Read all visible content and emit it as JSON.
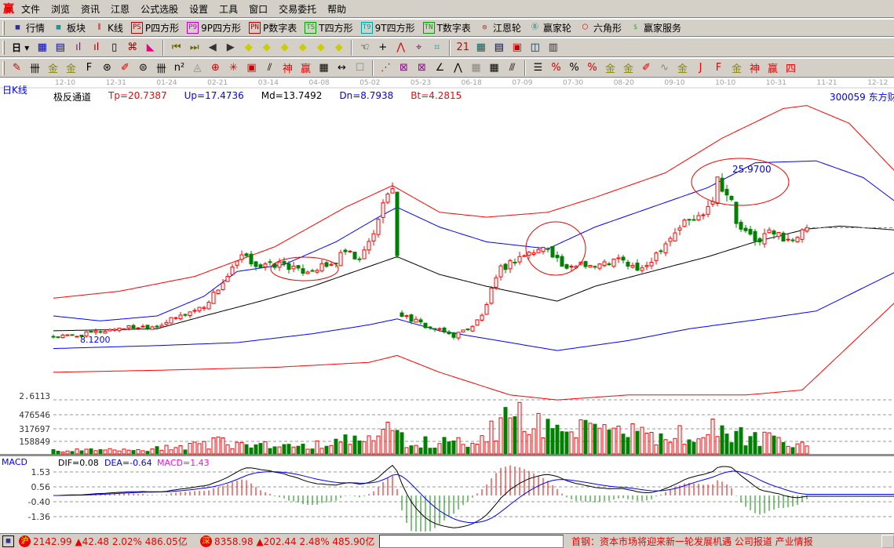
{
  "menu": {
    "logo": "赢",
    "items": [
      "文件",
      "浏览",
      "资讯",
      "江恩",
      "公式选股",
      "设置",
      "工具",
      "窗口",
      "交易委托",
      "帮助"
    ]
  },
  "toolbar1": [
    {
      "icon": "quote-table-icon",
      "glyph": "▦",
      "label": "行情",
      "color": "#000080"
    },
    {
      "icon": "sector-block-icon",
      "glyph": "▩",
      "label": "板块",
      "color": "#008080"
    },
    {
      "icon": "candlestick-icon",
      "glyph": "⫼",
      "label": "K线",
      "color": "#e00"
    },
    {
      "icon": "ps-icon",
      "glyph": "PS",
      "label": "P四方形",
      "color": "#c00000"
    },
    {
      "icon": "p9-icon",
      "glyph": "P9",
      "label": "9P四方形",
      "color": "#c000c0"
    },
    {
      "icon": "pn-icon",
      "glyph": "PN",
      "label": "P数字表",
      "color": "#c00000"
    },
    {
      "icon": "ts-icon",
      "glyph": "TS",
      "label": "T四方形",
      "color": "#00a000"
    },
    {
      "icon": "t9-icon",
      "glyph": "T9",
      "label": "9T四方形",
      "color": "#00a0a0"
    },
    {
      "icon": "tn-icon",
      "glyph": "TN",
      "label": "T数字表",
      "color": "#00a000"
    },
    {
      "icon": "gann-wheel-icon",
      "glyph": "◎",
      "label": "江恩轮",
      "color": "#800000"
    },
    {
      "icon": "big-wheel-icon",
      "glyph": "Ⓑ",
      "label": "赢家轮",
      "color": "#008080"
    },
    {
      "icon": "hexagon-icon",
      "glyph": "⬡",
      "label": "六角形",
      "color": "#c00000"
    },
    {
      "icon": "dollar-icon",
      "glyph": "$",
      "label": "赢家服务",
      "color": "#40b040"
    }
  ],
  "toolbar2": {
    "period": "日",
    "icons": [
      "chart-select-icon",
      "notepad-icon",
      "indicator-3-icon",
      "indicator-9-icon",
      "candle-type-icon",
      "gann-icon",
      "flag-icon",
      "first-icon",
      "last-icon",
      "prev-icon",
      "next-icon",
      "move-left-icon",
      "move-right-icon",
      "expand-h-icon",
      "shrink-h-icon",
      "shrink-v-icon",
      "expand-v-icon",
      "hand-icon",
      "crosshair-icon",
      "line-tool-icon",
      "pattern-icon",
      "pattern2-icon",
      "calendar-icon",
      "calculator-icon",
      "report-icon",
      "save-icon",
      "network-icon",
      "print-icon"
    ],
    "glyphs": [
      "▦",
      "▤",
      "ıl",
      "ıl",
      "▯",
      "⌘",
      "◣",
      "⏮",
      "⏭",
      "◀",
      "▶",
      "◆",
      "◆",
      "◆",
      "◆",
      "◆",
      "◆",
      "☜",
      "+",
      "⋀",
      "⌖",
      "⌗",
      "21",
      "▦",
      "▤",
      "▣",
      "◫",
      "▥"
    ],
    "colors": [
      "#00c",
      "#00c",
      "#909",
      "#900",
      "#000",
      "#900",
      "#e08",
      "#660",
      "#660",
      "#333",
      "#333",
      "#cc0",
      "#cc0",
      "#cc0",
      "#cc0",
      "#cc0",
      "#cc0",
      "#000",
      "#000",
      "#c00",
      "#909",
      "#399",
      "#c00",
      "#066",
      "#006",
      "#c00",
      "#036",
      "#333"
    ]
  },
  "toolbar3": {
    "icons": [
      "pen-icon",
      "parallel-icon",
      "gold-icon",
      "gold2-icon",
      "fib-icon",
      "spiral-icon",
      "marker-icon",
      "circle-ruler-icon",
      "hash-icon",
      "n2-icon",
      "triangle-icon",
      "target-icon",
      "web-icon",
      "square-web-icon",
      "slant-icon",
      "shen-icon",
      "ying-icon",
      "ruler-icon",
      "measure-icon",
      "box-icon",
      "fan-icon",
      "box-fan-icon",
      "square-fan-icon",
      "angle-icon",
      "wave-icon",
      "grid-icon",
      "grid2-icon",
      "lines-icon",
      "ladder-icon",
      "percent-line-icon",
      "percent-icon",
      "percent-lines-icon",
      "gold-circle-icon",
      "gold-lines-icon",
      "pen2-icon",
      "sine-icon",
      "gold-box-icon",
      "j-angle-icon",
      "f-angle-icon",
      "gold-angle-icon",
      "shen-angle-icon",
      "ying-angle-icon",
      "si-angle-icon"
    ],
    "glyphs": [
      "✎",
      "卌",
      "金",
      "金",
      "F",
      "⊛",
      "✐",
      "⊜",
      "卌",
      "n²",
      "◬",
      "⊕",
      "✳",
      "▣",
      "⫽",
      "神",
      "赢",
      "▦",
      "↔",
      "☐",
      "⋰",
      "⊠",
      "⊠",
      "∠",
      "⋀",
      "▦",
      "▦",
      "⫻",
      "☰",
      "%",
      "%",
      "%",
      "金",
      "金",
      "✐",
      "∿",
      "金",
      "J",
      "F",
      "金",
      "神",
      "赢",
      "四"
    ],
    "colors": [
      "#c00",
      "#000",
      "#880",
      "#880",
      "#000",
      "#000",
      "#c00",
      "#000",
      "#000",
      "#000",
      "#888",
      "#c00",
      "#c00",
      "#c00",
      "#000",
      "#e00",
      "#e00",
      "#000",
      "#000",
      "#888",
      "#c00",
      "#909",
      "#909",
      "#000",
      "#000",
      "#888",
      "#000",
      "#000",
      "#000",
      "#c00",
      "#000",
      "#c00",
      "#880",
      "#880",
      "#c00",
      "#888",
      "#880",
      "#e00",
      "#e00",
      "#880",
      "#e00",
      "#e00",
      "#e00"
    ]
  },
  "period_label": "日K线",
  "dates": [
    "12-10",
    "12-31",
    "01-24",
    "02-21",
    "03-14",
    "04-08",
    "05-02",
    "05-23",
    "06-18",
    "07-09",
    "07-30",
    "08-20",
    "09-10",
    "10-10",
    "10-31",
    "11-21",
    "12-12"
  ],
  "indicator": {
    "name": "极反通道",
    "values": [
      {
        "text": "Tp=20.7387",
        "color": "#ff0000"
      },
      {
        "text": "Up=17.4736",
        "color": "#0000ff"
      },
      {
        "text": "Md=13.7492",
        "color": "#000000"
      },
      {
        "text": "Dn=8.7938",
        "color": "#0000ff"
      },
      {
        "text": "Bt=4.2815",
        "color": "#ff0000"
      }
    ]
  },
  "stock": "300059  东方财",
  "annotations": {
    "low": "8.1200",
    "high": "25.9700"
  },
  "price_knots": [
    [
      0,
      8.4
    ],
    [
      5,
      8.5
    ],
    [
      14,
      9.3
    ],
    [
      22,
      9.5
    ],
    [
      27,
      10.5
    ],
    [
      32,
      11.5
    ],
    [
      37,
      14.5
    ],
    [
      40,
      16.5
    ],
    [
      44,
      15.5
    ],
    [
      49,
      15.8
    ],
    [
      52,
      15.0
    ],
    [
      59,
      15.6
    ],
    [
      62,
      17.0
    ],
    [
      65,
      16.0
    ],
    [
      69,
      20.0
    ],
    [
      70,
      22.5
    ],
    [
      72,
      23.0
    ],
    [
      74,
      10.6
    ],
    [
      79,
      9.5
    ],
    [
      85,
      8.5
    ],
    [
      89,
      9.5
    ],
    [
      91,
      10.5
    ],
    [
      93,
      13.0
    ],
    [
      95,
      15.2
    ],
    [
      99,
      16.5
    ],
    [
      105,
      17.5
    ],
    [
      109,
      15.0
    ],
    [
      112,
      16.0
    ],
    [
      115,
      15.5
    ],
    [
      120,
      16.2
    ],
    [
      125,
      15.0
    ],
    [
      129,
      17.5
    ],
    [
      134,
      20.0
    ],
    [
      137,
      20.5
    ],
    [
      140,
      22.5
    ],
    [
      141,
      24.5
    ],
    [
      144,
      22.0
    ],
    [
      145,
      19.8
    ],
    [
      149,
      18.0
    ],
    [
      152,
      19.0
    ],
    [
      155,
      18.5
    ],
    [
      158,
      18.2
    ],
    [
      160,
      19.5
    ]
  ],
  "bands": {
    "Tp": {
      "color": "#ff0000",
      "knots": [
        [
          0,
          12.3
        ],
        [
          14,
          13
        ],
        [
          30,
          14.5
        ],
        [
          47,
          17.5
        ],
        [
          62,
          21.5
        ],
        [
          72,
          23.7
        ],
        [
          82,
          21
        ],
        [
          92,
          20.5
        ],
        [
          105,
          21
        ],
        [
          115,
          22.5
        ],
        [
          130,
          25
        ],
        [
          142,
          28.5
        ],
        [
          155,
          31.5
        ],
        [
          160,
          31.8
        ],
        [
          169,
          30
        ],
        [
          179,
          25
        ]
      ]
    },
    "Up": {
      "color": "#0000ff",
      "knots": [
        [
          0,
          10.5
        ],
        [
          10,
          10
        ],
        [
          22,
          10.5
        ],
        [
          32,
          12.5
        ],
        [
          39,
          15
        ],
        [
          49,
          15.7
        ],
        [
          60,
          18
        ],
        [
          69,
          20.5
        ],
        [
          73,
          21.5
        ],
        [
          82,
          19.5
        ],
        [
          92,
          18.0
        ],
        [
          105,
          17.3
        ],
        [
          115,
          19.5
        ],
        [
          127,
          21.5
        ],
        [
          139,
          23.5
        ],
        [
          149,
          26
        ],
        [
          162,
          26.2
        ],
        [
          172,
          24.5
        ],
        [
          179,
          22
        ]
      ]
    },
    "Md": {
      "color": "#000000",
      "knots": [
        [
          0,
          9.0
        ],
        [
          22,
          9.2
        ],
        [
          32,
          10.5
        ],
        [
          44,
          12.0
        ],
        [
          55,
          13.5
        ],
        [
          67,
          15.5
        ],
        [
          73,
          16.5
        ],
        [
          82,
          14.7
        ],
        [
          92,
          13.5
        ],
        [
          107,
          12.0
        ],
        [
          115,
          13.5
        ],
        [
          127,
          15
        ],
        [
          139,
          16.5
        ],
        [
          149,
          18
        ],
        [
          160,
          19.3
        ],
        [
          167,
          19.6
        ],
        [
          179,
          19.2
        ]
      ]
    },
    "Dn": {
      "color": "#0000ff",
      "knots": [
        [
          0,
          7.2
        ],
        [
          22,
          7.5
        ],
        [
          39,
          7.8
        ],
        [
          55,
          8.7
        ],
        [
          67,
          9.6
        ],
        [
          73,
          10.2
        ],
        [
          82,
          9.0
        ],
        [
          92,
          8.2
        ],
        [
          107,
          7.0
        ],
        [
          122,
          8.0
        ],
        [
          135,
          9.2
        ],
        [
          149,
          10.1
        ],
        [
          162,
          11
        ],
        [
          179,
          15
        ]
      ]
    },
    "Bt": {
      "color": "#ff0000",
      "knots": [
        [
          0,
          4.8
        ],
        [
          22,
          5.0
        ],
        [
          47,
          5.3
        ],
        [
          67,
          5.8
        ],
        [
          73,
          6.5
        ],
        [
          82,
          4.8
        ],
        [
          97,
          2.5
        ],
        [
          107,
          2.0
        ],
        [
          122,
          2.5
        ],
        [
          147,
          2.5
        ],
        [
          159,
          3.0
        ],
        [
          179,
          12
        ]
      ]
    }
  },
  "volume": {
    "axis": [
      "2.6113",
      "476546",
      "317697",
      "158849"
    ],
    "knots": [
      [
        0,
        40000
      ],
      [
        20,
        50000
      ],
      [
        35,
        150000
      ],
      [
        50,
        100000
      ],
      [
        65,
        180000
      ],
      [
        72,
        300000
      ],
      [
        75,
        150000
      ],
      [
        90,
        150000
      ],
      [
        95,
        400000
      ],
      [
        100,
        480000
      ],
      [
        110,
        300000
      ],
      [
        120,
        280000
      ],
      [
        130,
        250000
      ],
      [
        140,
        300000
      ],
      [
        150,
        200000
      ],
      [
        160,
        120000
      ]
    ]
  },
  "macd": {
    "name": "MACD",
    "dif": "DIF=0.08",
    "dea": "DEA=-0.64",
    "macd": "MACD=1.43",
    "axis": [
      "1.53",
      "0.56",
      "-0.40",
      "-1.36"
    ]
  },
  "status": {
    "sh_badge": "沪",
    "sh": "2142.99 ▲42.48 2.02% 486.05亿",
    "sz_badge": "深",
    "sz": "8358.98 ▲202.44 2.48% 485.90亿",
    "ticker": "首钢：资本市场将迎来新一轮发展机遇      公司报道      产业情报"
  },
  "colors": {
    "up": "#ff0000",
    "down": "#008000",
    "ui": "#d4d0c8"
  }
}
